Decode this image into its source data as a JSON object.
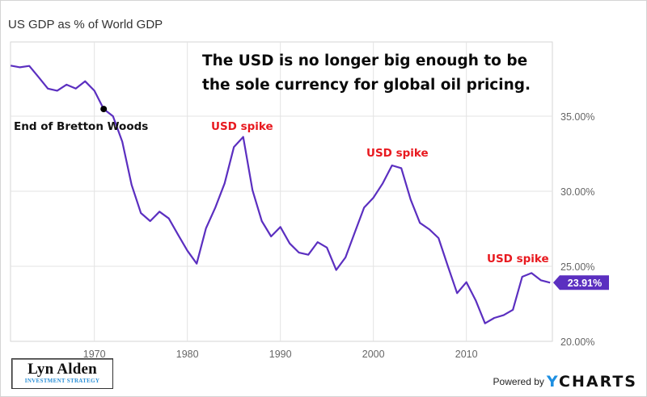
{
  "title": "US GDP as % of World GDP",
  "headline": [
    "The USD is no longer big enough to be",
    "the sole currency for global oil pricing."
  ],
  "colors": {
    "line": "#5b2fc0",
    "annotation_red": "#e8191f",
    "annotation_black": "#111111",
    "last_value_bg": "#5b2fc0",
    "grid": "#e3e3e3",
    "axis_text": "#666666"
  },
  "annotations": [
    {
      "text": "End of Bretton Woods",
      "year": 1971,
      "color": "black",
      "marker": true
    },
    {
      "text": "USD spike",
      "year": 1985,
      "color": "red"
    },
    {
      "text": "USD spike",
      "year": 2002,
      "color": "red"
    },
    {
      "text": "USD spike",
      "year": 2017,
      "color": "red"
    }
  ],
  "last_value_label": "23.91%",
  "branding": {
    "logo_name": "Lyn Alden",
    "logo_sub": "INVESTMENT STRATEGY",
    "powered_by": "Powered by",
    "ycharts_y": "Y",
    "ycharts_rest": "CHARTS"
  },
  "chart_data": {
    "type": "line",
    "title": "US GDP as % of World GDP",
    "xlabel": "",
    "ylabel": "",
    "x_ticks": [
      1970,
      1980,
      1990,
      2000,
      2010
    ],
    "y_ticks": [
      "20.00%",
      "25.00%",
      "30.00%",
      "35.00%"
    ],
    "y_tick_values": [
      20,
      25,
      30,
      35
    ],
    "xlim": [
      1961,
      2019
    ],
    "ylim": [
      20,
      39.5
    ],
    "grid": true,
    "y_axis_side": "right",
    "series": [
      {
        "name": "US GDP as % of World GDP",
        "x": [
          1961,
          1962,
          1963,
          1964,
          1965,
          1966,
          1967,
          1968,
          1969,
          1970,
          1971,
          1972,
          1973,
          1974,
          1975,
          1976,
          1977,
          1978,
          1979,
          1980,
          1981,
          1982,
          1983,
          1984,
          1985,
          1986,
          1987,
          1988,
          1989,
          1990,
          1991,
          1992,
          1993,
          1994,
          1995,
          1996,
          1997,
          1998,
          1999,
          2000,
          2001,
          2002,
          2003,
          2004,
          2005,
          2006,
          2007,
          2008,
          2009,
          2010,
          2011,
          2012,
          2013,
          2014,
          2015,
          2016,
          2017,
          2018,
          2019
        ],
        "values": [
          38.37,
          38.26,
          38.35,
          37.6,
          36.84,
          36.7,
          37.1,
          36.84,
          37.33,
          36.7,
          35.48,
          35.0,
          33.3,
          30.43,
          28.55,
          28.01,
          28.64,
          28.19,
          27.1,
          26.04,
          25.18,
          27.53,
          28.91,
          30.52,
          32.94,
          33.62,
          30.07,
          28.01,
          26.99,
          27.62,
          26.52,
          25.91,
          25.77,
          26.61,
          26.25,
          24.75,
          25.59,
          27.26,
          28.91,
          29.57,
          30.52,
          31.72,
          31.54,
          29.45,
          27.89,
          27.47,
          26.88,
          25.02,
          23.21,
          23.94,
          22.73,
          21.2,
          21.56,
          21.74,
          22.1,
          24.3,
          24.55,
          24.07,
          23.91
        ]
      }
    ]
  }
}
